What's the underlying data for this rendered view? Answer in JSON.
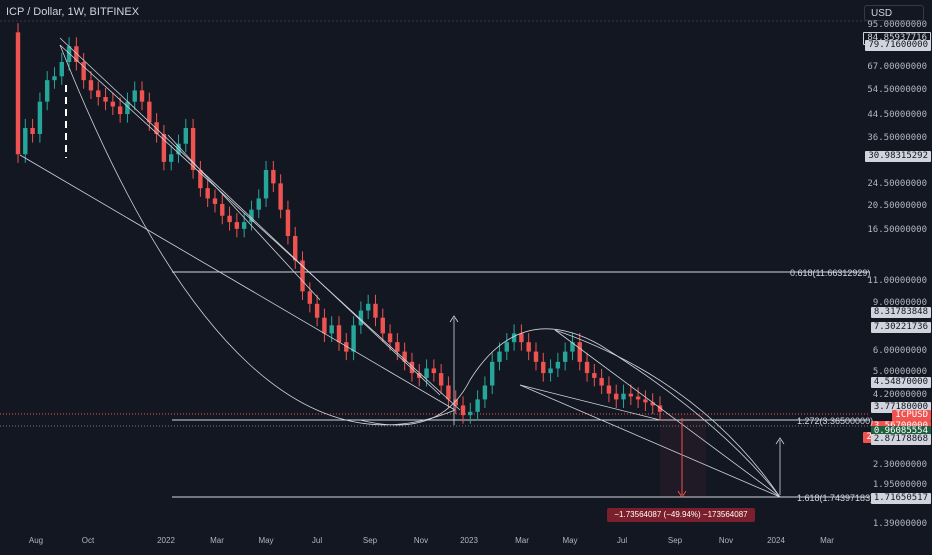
{
  "header": {
    "title": "ICP / Dollar, 1W, BITFINEX"
  },
  "currency_button": {
    "label": "USD"
  },
  "colors": {
    "up": "#26a69a",
    "down": "#ef5350",
    "lines": "#d1d4dc",
    "bg": "#131722"
  },
  "chart_data": {
    "type": "candlestick",
    "symbol": "ICPUSD",
    "y_ticks": [
      "95.00000000",
      "67.00000000",
      "54.50000000",
      "44.50000000",
      "36.50000000",
      "24.50000000",
      "20.50000000",
      "16.50000000",
      "11.00000000",
      "9.00000000",
      "6.00000000",
      "5.00000000",
      "4.20000000",
      "2.30000000",
      "1.95000000",
      "1.39000000"
    ],
    "x_ticks": [
      "Aug",
      "Oct",
      "2022",
      "Mar",
      "May",
      "Jul",
      "Sep",
      "Nov",
      "2023",
      "Mar",
      "May",
      "Jul",
      "Sep",
      "Nov",
      "2024",
      "Mar"
    ],
    "price_tags": {
      "p84": "84.85937716",
      "p79": "79.71600000",
      "p30": "30.98315292",
      "p8": "8.31783848",
      "p7": "7.30221736",
      "p454": "4.54870000",
      "p377": "3.77180000",
      "icp_label": "ICPUSD",
      "current": "3.56700000",
      "countdown": "2d 11h",
      "green": "0.96085554",
      "p287": "2.87178868",
      "p171": "1.71650517"
    },
    "fib_labels": {
      "fib618": "0.618(11.66312929)",
      "fib1272": "1.272(3.36500000)",
      "fib1618": "1.618(1.74397183)"
    },
    "measure_label": "−1.73564087 (−49.94%) −173564087",
    "closes": [
      32,
      40,
      38,
      50,
      60,
      62,
      70,
      80,
      70,
      60,
      55,
      52,
      50,
      48,
      45,
      50,
      55,
      50,
      42,
      38,
      30,
      32,
      35,
      40,
      28,
      24,
      22,
      21,
      19,
      18,
      17,
      18,
      20,
      22,
      28,
      25,
      20,
      16,
      13,
      10,
      9,
      8,
      7,
      7.5,
      6.5,
      6,
      7.5,
      8.5,
      9,
      8,
      7,
      6.5,
      6,
      5.5,
      5,
      4.8,
      5.2,
      5,
      4.5,
      4,
      3.8,
      3.5,
      3.6,
      4,
      4.5,
      5.5,
      6,
      6.5,
      7,
      6.5,
      6,
      5.5,
      5,
      5.2,
      5.5,
      6,
      6.5,
      5.5,
      5,
      4.8,
      4.5,
      4.2,
      4,
      4.2,
      4.1,
      4,
      3.9,
      3.8,
      3.6
    ]
  }
}
